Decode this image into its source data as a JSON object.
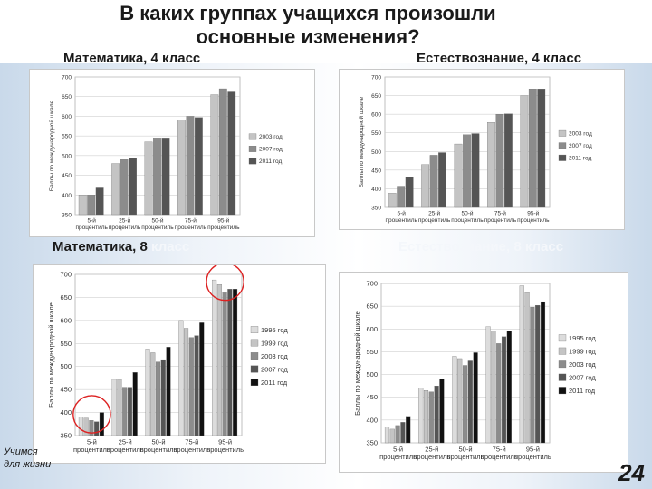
{
  "header": {
    "title_line1": "В  каких группах учащихся произошли",
    "title_line2": "основные изменения?",
    "sub_math4": "Математика, 4 класс",
    "sub_sci4": "Естествознание, 4 класс",
    "sub_math8_a": "Математика, 8",
    "sub_math8_b": " класс",
    "sub_sci8": "Естествознание, 8 класс"
  },
  "footer": {
    "left_line1": "Учимся",
    "left_line2": "для жизни",
    "page_number": "24"
  },
  "colors": {
    "light": "#c4c4c4",
    "mid": "#8c8c8c",
    "dark": "#555555",
    "lightgray": "#dcdcdc",
    "black": "#111111",
    "highlight": "#dd2222"
  },
  "chart_data": [
    {
      "type": "bar",
      "ylabel": "Баллы по международной шкале",
      "ylim": [
        350,
        700
      ],
      "yticks": [
        350,
        400,
        450,
        500,
        550,
        600,
        650,
        700
      ],
      "categories": [
        [
          "5-й",
          "процентиль"
        ],
        [
          "25-й",
          "процентиль"
        ],
        [
          "50-й",
          "процентиль"
        ],
        [
          "75-й",
          "процентиль"
        ],
        [
          "95-й",
          "процентиль"
        ]
      ],
      "series": [
        {
          "name": "2003 год",
          "color": "#c4c4c4",
          "values": [
            400,
            480,
            535,
            590,
            655
          ]
        },
        {
          "name": "2007 год",
          "color": "#8c8c8c",
          "values": [
            400,
            490,
            545,
            600,
            670
          ]
        },
        {
          "name": "2011 год",
          "color": "#555555",
          "values": [
            418,
            493,
            545,
            597,
            662
          ]
        }
      ],
      "legend": "right"
    },
    {
      "type": "bar",
      "ylabel": "Баллы по международной шкале",
      "ylim": [
        350,
        700
      ],
      "yticks": [
        350,
        400,
        450,
        500,
        550,
        600,
        650,
        700
      ],
      "categories": [
        [
          "5-й",
          "процентиль"
        ],
        [
          "25-й",
          "процентиль"
        ],
        [
          "50-й",
          "процентиль"
        ],
        [
          "75-й",
          "процентиль"
        ],
        [
          "95-й",
          "процентиль"
        ]
      ],
      "series": [
        {
          "name": "2003 год",
          "color": "#c4c4c4",
          "values": [
            388,
            465,
            520,
            578,
            650
          ]
        },
        {
          "name": "2007 год",
          "color": "#8c8c8c",
          "values": [
            407,
            490,
            545,
            600,
            668
          ]
        },
        {
          "name": "2011 год",
          "color": "#555555",
          "values": [
            432,
            497,
            548,
            601,
            668
          ]
        }
      ],
      "legend": "right"
    },
    {
      "type": "bar",
      "ylabel": "Баллы по международной шкале",
      "ylim": [
        350,
        700
      ],
      "yticks": [
        350,
        400,
        450,
        500,
        550,
        600,
        650,
        700
      ],
      "categories": [
        [
          "5-й",
          "процентиль"
        ],
        [
          "25-й",
          "процентиль"
        ],
        [
          "50-й",
          "процентиль"
        ],
        [
          "75-й",
          "процентиль"
        ],
        [
          "95-й",
          "процентиль"
        ]
      ],
      "series": [
        {
          "name": "1995 год",
          "color": "#dcdcdc",
          "values": [
            390,
            472,
            538,
            600,
            688
          ]
        },
        {
          "name": "1999 год",
          "color": "#c4c4c4",
          "values": [
            388,
            472,
            530,
            583,
            678
          ]
        },
        {
          "name": "2003 год",
          "color": "#8c8c8c",
          "values": [
            383,
            455,
            510,
            563,
            660
          ]
        },
        {
          "name": "2007 год",
          "color": "#555555",
          "values": [
            380,
            455,
            515,
            567,
            668
          ]
        },
        {
          "name": "2011 год",
          "color": "#111111",
          "values": [
            400,
            487,
            542,
            595,
            668
          ]
        }
      ],
      "legend": "right",
      "highlights": [
        "5-й процентиль",
        "95-й процентиль"
      ]
    },
    {
      "type": "bar",
      "ylabel": "Баллы по международной шкале",
      "ylim": [
        350,
        700
      ],
      "yticks": [
        350,
        400,
        450,
        500,
        550,
        600,
        650,
        700
      ],
      "categories": [
        [
          "5-й",
          "процентиль"
        ],
        [
          "25-й",
          "процентиль"
        ],
        [
          "50-й",
          "процентиль"
        ],
        [
          "75-й",
          "процентиль"
        ],
        [
          "95-й",
          "процентиль"
        ]
      ],
      "series": [
        {
          "name": "1995 год",
          "color": "#dcdcdc",
          "values": [
            385,
            470,
            540,
            605,
            695
          ]
        },
        {
          "name": "1999 год",
          "color": "#c4c4c4",
          "values": [
            380,
            465,
            535,
            595,
            680
          ]
        },
        {
          "name": "2003 год",
          "color": "#8c8c8c",
          "values": [
            388,
            462,
            520,
            568,
            648
          ]
        },
        {
          "name": "2007 год",
          "color": "#555555",
          "values": [
            395,
            475,
            530,
            583,
            652
          ]
        },
        {
          "name": "2011 год",
          "color": "#111111",
          "values": [
            408,
            490,
            548,
            595,
            660
          ]
        }
      ],
      "legend": "right"
    }
  ]
}
